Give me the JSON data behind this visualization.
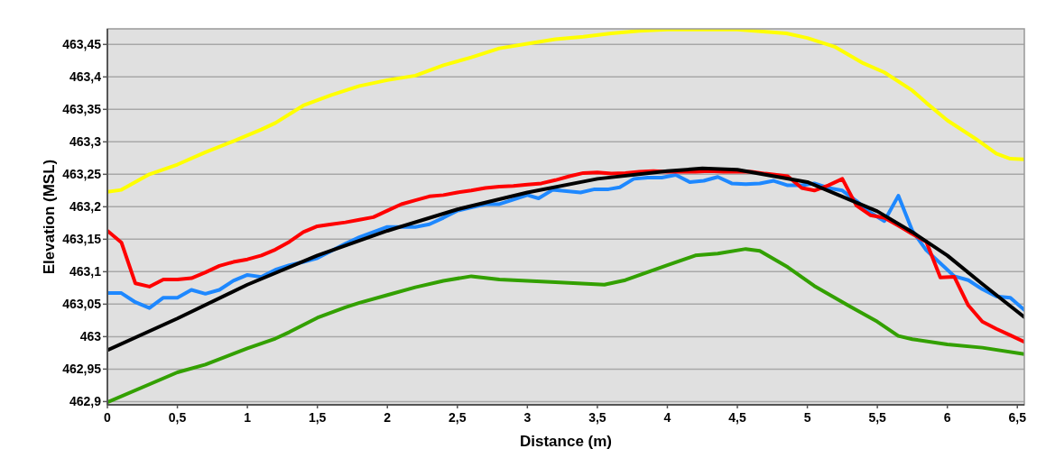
{
  "chart_data": {
    "type": "line",
    "xlabel": "Distance (m)",
    "ylabel": "Elevation (MSL)",
    "xlim": [
      0,
      6.55
    ],
    "ylim": [
      462.895,
      463.474
    ],
    "xticks": [
      0,
      {
        "value": 0.5,
        "label": "0,5"
      },
      1,
      {
        "value": 1.5,
        "label": "1,5"
      },
      2,
      {
        "value": 2.5,
        "label": "2,5"
      },
      3,
      {
        "value": 3.5,
        "label": "3,5"
      },
      4,
      {
        "value": 4.5,
        "label": "4,5"
      },
      5,
      {
        "value": 5.5,
        "label": "5,5"
      },
      6,
      {
        "value": 6.5,
        "label": "6,5"
      }
    ],
    "yticks": [
      {
        "value": 462.9,
        "label": "462,9"
      },
      {
        "value": 462.95,
        "label": "462,95"
      },
      463,
      {
        "value": 463.05,
        "label": "463,05"
      },
      {
        "value": 463.1,
        "label": "463,1"
      },
      {
        "value": 463.15,
        "label": "463,15"
      },
      {
        "value": 463.2,
        "label": "463,2"
      },
      {
        "value": 463.25,
        "label": "463,25"
      },
      {
        "value": 463.3,
        "label": "463,3"
      },
      {
        "value": 463.35,
        "label": "463,35"
      },
      {
        "value": 463.4,
        "label": "463,4"
      },
      {
        "value": 463.45,
        "label": "463,45"
      }
    ],
    "grid": "y",
    "marker": "none",
    "line_style": "solid",
    "series": [
      {
        "color": "#ffff00",
        "x": [
          0,
          0.1,
          0.3,
          0.5,
          0.7,
          0.9,
          1.1,
          1.2,
          1.4,
          1.6,
          1.8,
          2,
          2.2,
          2.4,
          2.6,
          2.8,
          3,
          3.2,
          3.4,
          3.6,
          3.8,
          4,
          4.5,
          4.85,
          5,
          5.2,
          5.4,
          5.55,
          5.75,
          5.85,
          6,
          6.2,
          6.35,
          6.45,
          6.55
        ],
        "values": [
          463.223,
          463.226,
          463.25,
          463.265,
          463.284,
          463.301,
          463.319,
          463.329,
          463.356,
          463.372,
          463.386,
          463.395,
          463.402,
          463.418,
          463.43,
          463.444,
          463.451,
          463.458,
          463.462,
          463.467,
          463.471,
          463.473,
          463.473,
          463.467,
          463.46,
          463.446,
          463.421,
          463.407,
          463.379,
          463.36,
          463.333,
          463.305,
          463.282,
          463.274,
          463.273
        ]
      },
      {
        "color": "#33a000",
        "x": [
          0,
          0.5,
          0.7,
          1,
          1.2,
          1.3,
          1.5,
          1.7,
          1.8,
          2,
          2.2,
          2.4,
          2.6,
          2.8,
          3.2,
          3.55,
          3.7,
          4,
          4.2,
          4.36,
          4.56,
          4.66,
          4.86,
          5.05,
          5.3,
          5.5,
          5.65,
          5.75,
          6,
          6.25,
          6.55
        ],
        "values": [
          462.899,
          462.945,
          462.957,
          462.982,
          462.997,
          463.007,
          463.029,
          463.045,
          463.052,
          463.064,
          463.076,
          463.086,
          463.093,
          463.088,
          463.084,
          463.08,
          463.087,
          463.11,
          463.125,
          463.128,
          463.135,
          463.132,
          463.107,
          463.078,
          463.047,
          463.023,
          463.001,
          462.996,
          462.988,
          462.983,
          462.973
        ]
      },
      {
        "color": "#1e88ff",
        "x": [
          0,
          0.1,
          0.2,
          0.3,
          0.4,
          0.5,
          0.6,
          0.7,
          0.8,
          0.9,
          1,
          1.1,
          1.2,
          1.3,
          1.4,
          1.5,
          1.6,
          1.7,
          1.8,
          1.9,
          2,
          2.1,
          2.2,
          2.3,
          2.4,
          2.5,
          2.6,
          2.7,
          2.8,
          2.9,
          3,
          3.08,
          3.18,
          3.28,
          3.38,
          3.48,
          3.58,
          3.66,
          3.76,
          3.86,
          3.96,
          4.06,
          4.16,
          4.26,
          4.36,
          4.46,
          4.56,
          4.66,
          4.76,
          4.86,
          4.96,
          5.05,
          5.15,
          5.25,
          5.35,
          5.45,
          5.55,
          5.65,
          5.75,
          5.85,
          5.95,
          6.05,
          6.15,
          6.25,
          6.35,
          6.45,
          6.55
        ],
        "values": [
          463.067,
          463.067,
          463.053,
          463.044,
          463.06,
          463.06,
          463.072,
          463.066,
          463.072,
          463.086,
          463.095,
          463.092,
          463.103,
          463.11,
          463.115,
          463.121,
          463.132,
          463.143,
          463.153,
          463.161,
          463.169,
          463.169,
          463.169,
          463.173,
          463.183,
          463.194,
          463.199,
          463.204,
          463.204,
          463.211,
          463.218,
          463.213,
          463.226,
          463.224,
          463.222,
          463.227,
          463.227,
          463.23,
          463.243,
          463.245,
          463.245,
          463.249,
          463.238,
          463.24,
          463.246,
          463.236,
          463.235,
          463.236,
          463.24,
          463.233,
          463.233,
          463.236,
          463.229,
          463.225,
          463.209,
          463.191,
          463.178,
          463.217,
          463.163,
          463.133,
          463.113,
          463.093,
          463.087,
          463.073,
          463.062,
          463.06,
          463.041
        ]
      },
      {
        "color": "#ff0000",
        "x": [
          0,
          0.1,
          0.2,
          0.3,
          0.4,
          0.5,
          0.6,
          0.7,
          0.8,
          0.9,
          1,
          1.1,
          1.2,
          1.3,
          1.4,
          1.5,
          1.6,
          1.7,
          1.8,
          1.9,
          2,
          2.1,
          2.2,
          2.3,
          2.4,
          2.5,
          2.6,
          2.7,
          2.8,
          2.9,
          3,
          3.1,
          3.2,
          3.3,
          3.4,
          3.5,
          3.6,
          3.7,
          3.8,
          3.9,
          4,
          4.1,
          4.2,
          4.3,
          4.4,
          4.5,
          4.6,
          4.7,
          4.86,
          4.96,
          5.05,
          5.15,
          5.25,
          5.35,
          5.45,
          5.55,
          5.65,
          5.75,
          5.85,
          5.95,
          6.05,
          6.15,
          6.25,
          6.35,
          6.45,
          6.55
        ],
        "values": [
          463.163,
          463.145,
          463.082,
          463.077,
          463.088,
          463.088,
          463.09,
          463.099,
          463.109,
          463.115,
          463.119,
          463.125,
          463.134,
          463.146,
          463.161,
          463.17,
          463.173,
          463.176,
          463.18,
          463.184,
          463.194,
          463.204,
          463.21,
          463.216,
          463.218,
          463.222,
          463.225,
          463.229,
          463.231,
          463.232,
          463.234,
          463.236,
          463.241,
          463.247,
          463.252,
          463.253,
          463.251,
          463.252,
          463.254,
          463.255,
          463.254,
          463.254,
          463.254,
          463.255,
          463.254,
          463.254,
          463.254,
          463.251,
          463.247,
          463.229,
          463.225,
          463.233,
          463.243,
          463.202,
          463.187,
          463.183,
          463.171,
          463.158,
          463.146,
          463.091,
          463.092,
          463.048,
          463.023,
          463.012,
          463.002,
          462.992
        ]
      },
      {
        "color": "#000000",
        "x": [
          0,
          0.5,
          1,
          1.5,
          2,
          2.5,
          3,
          3.5,
          4,
          4.25,
          4.5,
          5,
          5.5,
          5.75,
          6,
          6.25,
          6.55
        ],
        "values": [
          462.979,
          463.028,
          463.08,
          463.125,
          463.163,
          463.196,
          463.222,
          463.243,
          463.255,
          463.259,
          463.257,
          463.238,
          463.193,
          463.161,
          463.125,
          463.081,
          463.03
        ]
      }
    ]
  }
}
